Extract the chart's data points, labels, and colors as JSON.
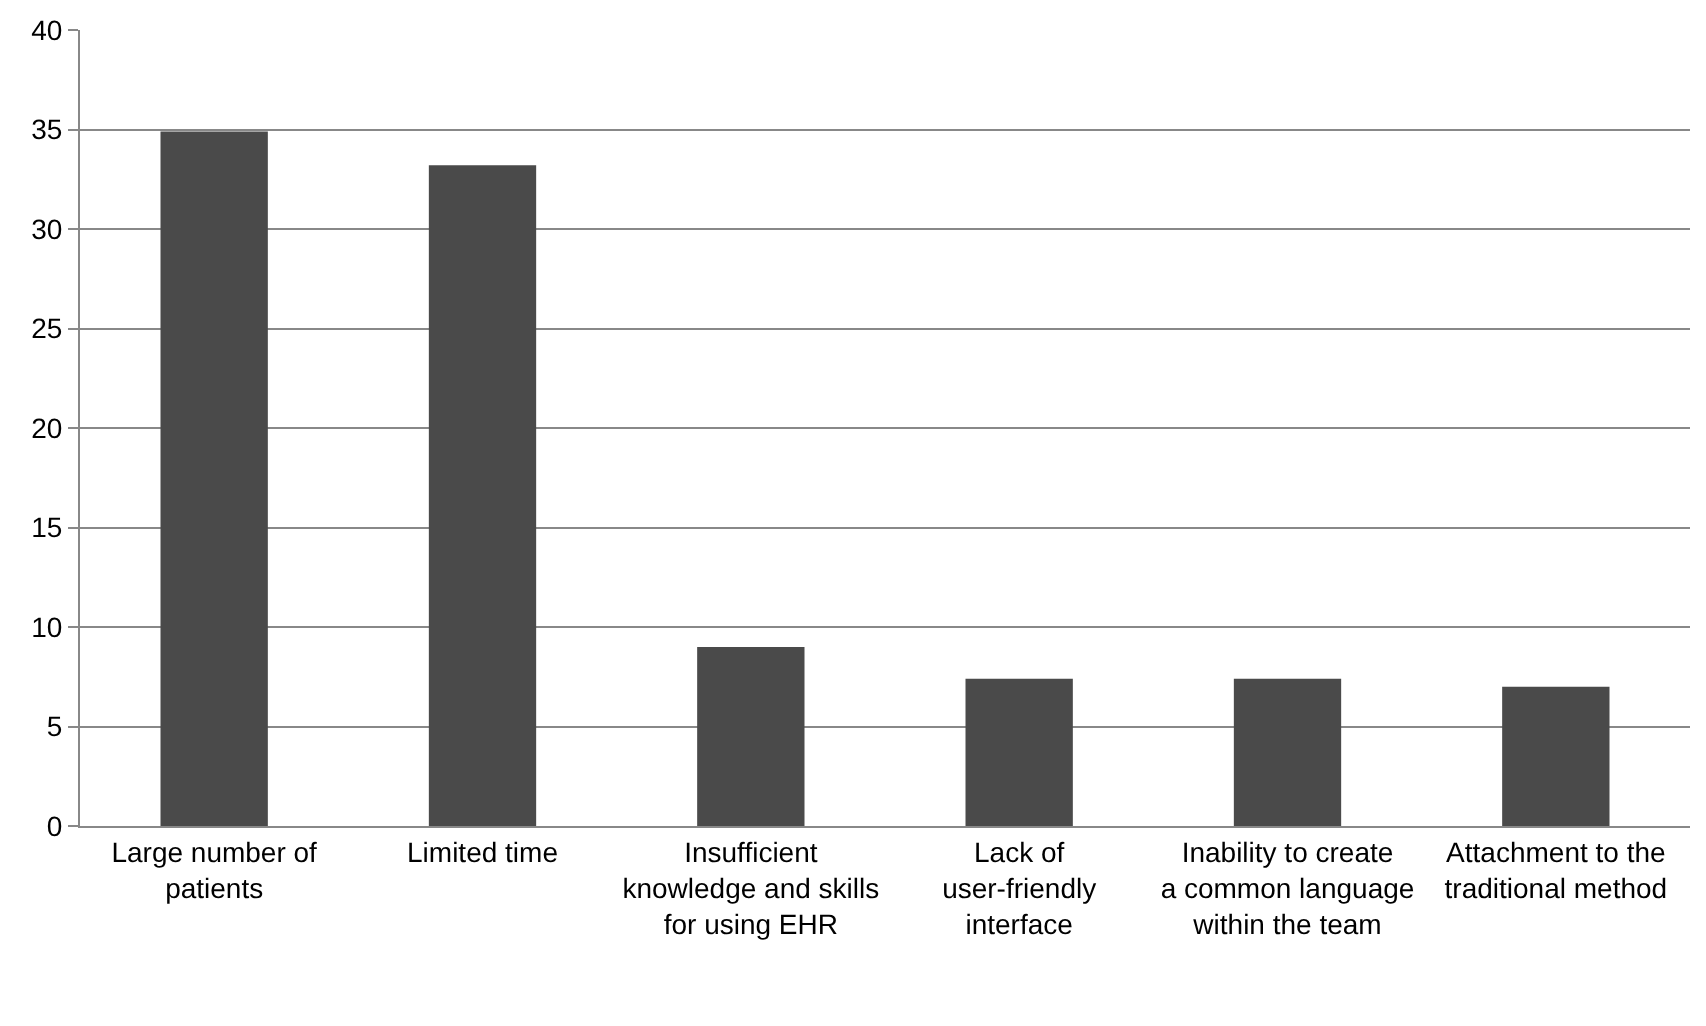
{
  "chart_data": {
    "type": "bar",
    "categories": [
      "Large number of patients",
      "Limited time",
      "Insufficient knowledge and skills for using EHR",
      "Lack of user-friendly interface",
      "Inability to create a common language within the team",
      "Attachment to the traditional method"
    ],
    "values": [
      34.9,
      33.2,
      9.0,
      7.4,
      7.4,
      7.0
    ],
    "color": "#4a4a4a",
    "ylim": [
      0,
      40
    ],
    "yticks": [
      0,
      5,
      10,
      15,
      20,
      25,
      30,
      35,
      40
    ],
    "grid": "y",
    "legend": false
  }
}
